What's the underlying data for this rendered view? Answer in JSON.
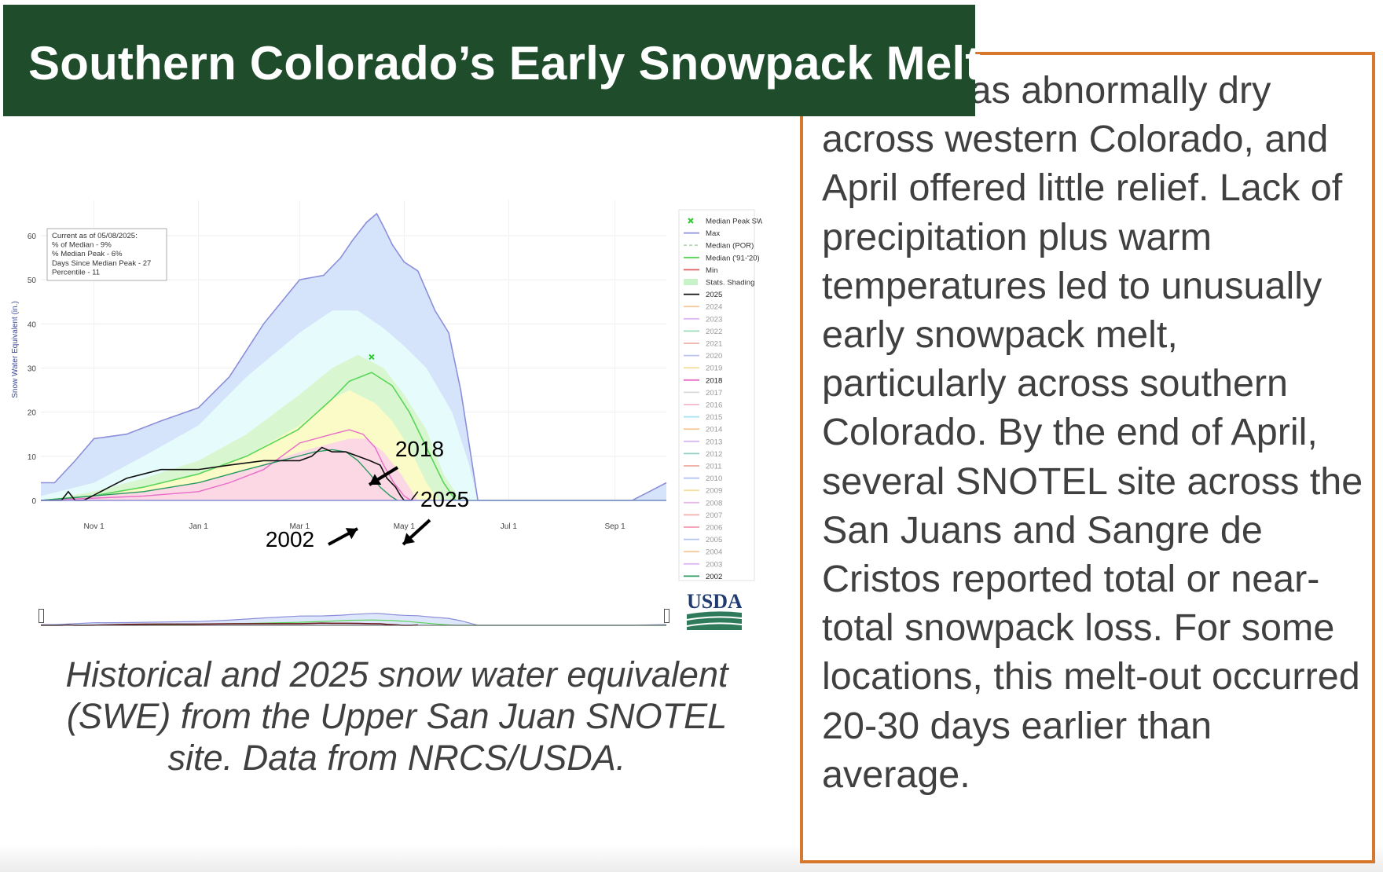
{
  "title": "Southern Colorado’s Early Snowpack Melt",
  "body_text": "      Winter was abnormally dry across western Colorado, and April offered little relief. Lack of precipitation plus warm temperatures led to unusually early snowpack melt, particularly across southern Colorado. By the end of April, several SNOTEL site across the San Juans and Sangre de Cristos reported total or near-total snowpack loss. For some locations, this melt-out occurred 20-30 days earlier than average.",
  "caption": "Historical and 2025 snow water equivalent (SWE) from the Upper San Juan SNOTEL site. Data from NRCS/USDA.",
  "logo_text": "USDA",
  "colors": {
    "title_bg": "#1f4d2c",
    "box_border": "#d7782d",
    "max": "#8b8fd9",
    "median": "#59d659",
    "y2025": "#111111",
    "y2018": "#e86cc8",
    "y2002": "#2a9a62"
  },
  "chart_data": {
    "type": "line",
    "ylabel": "Snow Water Equivalent (in.)",
    "xlabel": "",
    "ylim": [
      0,
      68
    ],
    "yticks": [
      0,
      10,
      20,
      30,
      40,
      50,
      60
    ],
    "x_ticks": [
      {
        "label": "Nov 1",
        "day": 31
      },
      {
        "label": "Jan 1",
        "day": 92
      },
      {
        "label": "Mar 1",
        "day": 151
      },
      {
        "label": "May 1",
        "day": 212
      },
      {
        "label": "Jul 1",
        "day": 273
      },
      {
        "label": "Sep 1",
        "day": 335
      }
    ],
    "xlim": [
      0,
      365
    ],
    "info_box": [
      "Current as of 05/08/2025:",
      "% of Median - 9%",
      "% Median Peak - 6%",
      "Days Since Median Peak - 27",
      "Percentile - 11"
    ],
    "annotations": [
      "2018",
      "2025",
      "2002"
    ],
    "median_peak": {
      "day": 193,
      "value": 32.5
    },
    "legend": [
      {
        "label": "Median Peak SWE",
        "color": "#31c931",
        "kind": "marker"
      },
      {
        "label": "Max",
        "color": "#8b8fd9",
        "kind": "line"
      },
      {
        "label": "Median (POR)",
        "color": "#b9d8b9",
        "kind": "dash"
      },
      {
        "label": "Median ('91-'20)",
        "color": "#59d659",
        "kind": "line"
      },
      {
        "label": "Min",
        "color": "#e05b5b",
        "kind": "line"
      },
      {
        "label": "Stats. Shading",
        "color": "#c8f2c8",
        "kind": "band"
      },
      {
        "label": "2025",
        "color": "#111111",
        "kind": "line"
      },
      {
        "label": "2024",
        "color": "#f7c99e",
        "kind": "line"
      },
      {
        "label": "2023",
        "color": "#e2b6f0",
        "kind": "line"
      },
      {
        "label": "2022",
        "color": "#9fd9b8",
        "kind": "line"
      },
      {
        "label": "2021",
        "color": "#f3b0a8",
        "kind": "line"
      },
      {
        "label": "2020",
        "color": "#b9c4f0",
        "kind": "line"
      },
      {
        "label": "2019",
        "color": "#f6e0a0",
        "kind": "line"
      },
      {
        "label": "2018",
        "color": "#e86cc8",
        "kind": "line"
      },
      {
        "label": "2017",
        "color": "#d9d9d9",
        "kind": "line"
      },
      {
        "label": "2016",
        "color": "#f5b8c8",
        "kind": "line"
      },
      {
        "label": "2015",
        "color": "#a8e0f0",
        "kind": "line"
      },
      {
        "label": "2014",
        "color": "#f7c99e",
        "kind": "line"
      },
      {
        "label": "2013",
        "color": "#d9b8f0",
        "kind": "line"
      },
      {
        "label": "2012",
        "color": "#8fd0c0",
        "kind": "line"
      },
      {
        "label": "2011",
        "color": "#f0a8a0",
        "kind": "line"
      },
      {
        "label": "2010",
        "color": "#b0c0f0",
        "kind": "line"
      },
      {
        "label": "2009",
        "color": "#f6e0a0",
        "kind": "line"
      },
      {
        "label": "2008",
        "color": "#e8b8e8",
        "kind": "line"
      },
      {
        "label": "2007",
        "color": "#f3b0a8",
        "kind": "line"
      },
      {
        "label": "2006",
        "color": "#f59ab0",
        "kind": "line"
      },
      {
        "label": "2005",
        "color": "#b0c8f0",
        "kind": "line"
      },
      {
        "label": "2004",
        "color": "#f7c99e",
        "kind": "line"
      },
      {
        "label": "2003",
        "color": "#e2b6f0",
        "kind": "line"
      },
      {
        "label": "2002",
        "color": "#2a9a62",
        "kind": "line"
      }
    ],
    "series": [
      {
        "name": "Max",
        "points": [
          [
            0,
            4
          ],
          [
            8,
            4
          ],
          [
            20,
            9
          ],
          [
            31,
            14
          ],
          [
            50,
            15
          ],
          [
            70,
            18
          ],
          [
            92,
            21
          ],
          [
            110,
            28
          ],
          [
            130,
            40
          ],
          [
            151,
            50
          ],
          [
            165,
            51
          ],
          [
            175,
            55
          ],
          [
            182,
            59
          ],
          [
            190,
            63
          ],
          [
            196,
            65
          ],
          [
            200,
            62
          ],
          [
            205,
            58
          ],
          [
            212,
            54
          ],
          [
            220,
            52
          ],
          [
            230,
            43
          ],
          [
            238,
            38
          ],
          [
            245,
            25
          ],
          [
            251,
            10
          ],
          [
            255,
            0
          ],
          [
            310,
            0
          ],
          [
            330,
            0
          ],
          [
            345,
            0
          ],
          [
            355,
            2
          ],
          [
            365,
            4
          ]
        ]
      },
      {
        "name": "Median ('91-'20)",
        "points": [
          [
            0,
            0
          ],
          [
            30,
            1
          ],
          [
            60,
            3
          ],
          [
            92,
            6
          ],
          [
            120,
            10
          ],
          [
            150,
            16
          ],
          [
            170,
            23
          ],
          [
            180,
            27
          ],
          [
            193,
            29
          ],
          [
            205,
            26
          ],
          [
            215,
            20
          ],
          [
            225,
            12
          ],
          [
            235,
            4
          ],
          [
            242,
            0
          ],
          [
            365,
            0
          ]
        ]
      },
      {
        "name": "2025",
        "points": [
          [
            0,
            0
          ],
          [
            12,
            0
          ],
          [
            16,
            2
          ],
          [
            20,
            0
          ],
          [
            25,
            0
          ],
          [
            30,
            1
          ],
          [
            40,
            3
          ],
          [
            50,
            5
          ],
          [
            60,
            6
          ],
          [
            70,
            7
          ],
          [
            80,
            7
          ],
          [
            92,
            7
          ],
          [
            110,
            8
          ],
          [
            130,
            9
          ],
          [
            151,
            9
          ],
          [
            158,
            10
          ],
          [
            164,
            12
          ],
          [
            170,
            11
          ],
          [
            178,
            11
          ],
          [
            185,
            10
          ],
          [
            192,
            9
          ],
          [
            198,
            8
          ],
          [
            202,
            5
          ],
          [
            207,
            3
          ],
          [
            210,
            1
          ],
          [
            212,
            0
          ],
          [
            216,
            0
          ],
          [
            220,
            2
          ]
        ]
      },
      {
        "name": "2018",
        "points": [
          [
            0,
            0
          ],
          [
            60,
            1
          ],
          [
            92,
            2
          ],
          [
            110,
            4
          ],
          [
            130,
            7
          ],
          [
            151,
            13
          ],
          [
            170,
            15
          ],
          [
            180,
            16
          ],
          [
            188,
            15
          ],
          [
            195,
            12
          ],
          [
            200,
            8
          ],
          [
            206,
            4
          ],
          [
            212,
            1
          ],
          [
            216,
            0
          ]
        ]
      },
      {
        "name": "2002",
        "points": [
          [
            0,
            0
          ],
          [
            60,
            2
          ],
          [
            92,
            4
          ],
          [
            120,
            7
          ],
          [
            140,
            9
          ],
          [
            160,
            11
          ],
          [
            170,
            11.5
          ],
          [
            178,
            11
          ],
          [
            185,
            9
          ],
          [
            192,
            6
          ],
          [
            198,
            3
          ],
          [
            204,
            1
          ],
          [
            208,
            0
          ]
        ]
      }
    ],
    "bands": [
      {
        "name": "upper quartile",
        "color": "#e6fbfb",
        "points": [
          [
            0,
            1
          ],
          [
            31,
            4
          ],
          [
            60,
            10
          ],
          [
            92,
            17
          ],
          [
            120,
            28
          ],
          [
            151,
            38
          ],
          [
            170,
            43
          ],
          [
            185,
            43
          ],
          [
            200,
            39
          ],
          [
            212,
            35
          ],
          [
            225,
            30
          ],
          [
            240,
            20
          ],
          [
            250,
            8
          ],
          [
            255,
            0
          ],
          [
            365,
            0
          ]
        ]
      },
      {
        "name": "upper mid",
        "color": "#d8f7d0",
        "points": [
          [
            0,
            0
          ],
          [
            31,
            2
          ],
          [
            60,
            5
          ],
          [
            92,
            9
          ],
          [
            120,
            15
          ],
          [
            151,
            24
          ],
          [
            170,
            30
          ],
          [
            185,
            33
          ],
          [
            200,
            30
          ],
          [
            212,
            24
          ],
          [
            225,
            16
          ],
          [
            235,
            6
          ],
          [
            245,
            0
          ],
          [
            365,
            0
          ]
        ]
      },
      {
        "name": "lower mid",
        "color": "#fbfbc8",
        "points": [
          [
            0,
            0
          ],
          [
            31,
            1
          ],
          [
            60,
            3
          ],
          [
            92,
            6
          ],
          [
            120,
            10
          ],
          [
            151,
            17
          ],
          [
            170,
            23
          ],
          [
            180,
            25
          ],
          [
            195,
            22
          ],
          [
            205,
            18
          ],
          [
            215,
            12
          ],
          [
            225,
            4
          ],
          [
            232,
            0
          ],
          [
            365,
            0
          ]
        ]
      },
      {
        "name": "lower quartile",
        "color": "#fbd8e4",
        "points": [
          [
            0,
            0
          ],
          [
            31,
            1
          ],
          [
            60,
            2
          ],
          [
            92,
            4
          ],
          [
            120,
            7
          ],
          [
            151,
            11
          ],
          [
            170,
            13
          ],
          [
            180,
            14
          ],
          [
            190,
            14
          ],
          [
            200,
            11
          ],
          [
            210,
            6
          ],
          [
            220,
            0
          ],
          [
            365,
            0
          ]
        ]
      }
    ]
  }
}
